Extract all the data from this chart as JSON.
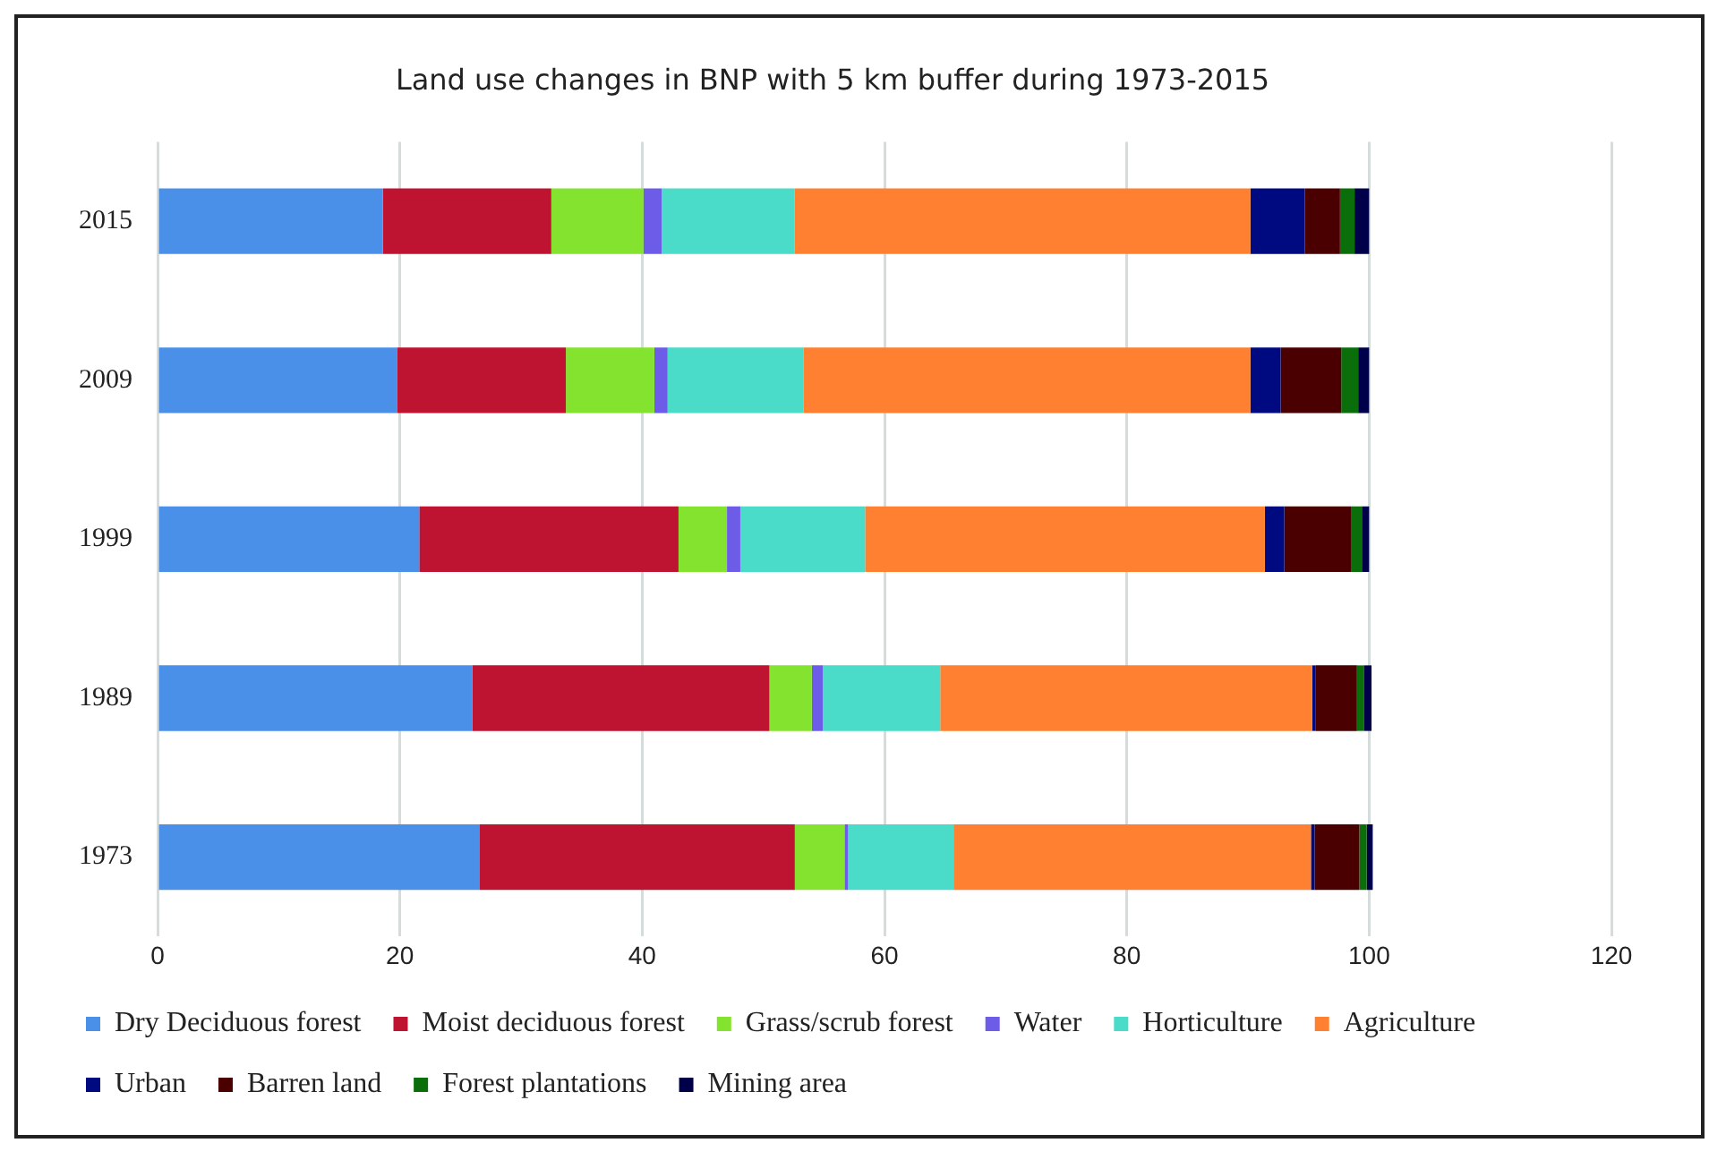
{
  "chart_data": {
    "type": "bar",
    "orientation": "horizontal",
    "stacked": true,
    "title": "Land use changes in BNP with 5 km buffer during 1973-2015",
    "categories": [
      "2015",
      "2009",
      "1999",
      "1989",
      "1973"
    ],
    "series": [
      {
        "name": "Dry Deciduous forest",
        "color": "#4a90e8",
        "values": [
          18.6,
          19.8,
          21.6,
          26.0,
          26.6
        ]
      },
      {
        "name": "Moist deciduous forest",
        "color": "#be1432",
        "values": [
          13.9,
          13.9,
          21.4,
          24.5,
          26.0
        ]
      },
      {
        "name": "Grass/scrub forest",
        "color": "#84e32e",
        "values": [
          7.6,
          7.3,
          4.0,
          3.5,
          4.1
        ]
      },
      {
        "name": "Water",
        "color": "#6c5ce8",
        "values": [
          1.5,
          1.1,
          1.1,
          0.9,
          0.3
        ]
      },
      {
        "name": "Horticulture",
        "color": "#4adcc8",
        "values": [
          11.0,
          11.2,
          10.3,
          9.7,
          8.7
        ]
      },
      {
        "name": "Agriculture",
        "color": "#ff8030",
        "values": [
          37.6,
          36.9,
          33.0,
          30.7,
          29.5
        ]
      },
      {
        "name": "Urban",
        "color": "#000a80",
        "values": [
          4.5,
          2.5,
          1.6,
          0.3,
          0.3
        ]
      },
      {
        "name": "Barren land",
        "color": "#4a0000",
        "values": [
          2.9,
          5.0,
          5.5,
          3.4,
          3.7
        ]
      },
      {
        "name": "Forest plantations",
        "color": "#0a6e0a",
        "values": [
          1.2,
          1.4,
          0.9,
          0.6,
          0.6
        ]
      },
      {
        "name": "Mining area",
        "color": "#00004a",
        "values": [
          1.2,
          0.9,
          0.6,
          0.6,
          0.5
        ]
      }
    ],
    "xlim": [
      0,
      120
    ],
    "xticks": [
      0,
      20,
      40,
      60,
      80,
      100,
      120
    ],
    "grid": "x",
    "legend": "bottom"
  }
}
